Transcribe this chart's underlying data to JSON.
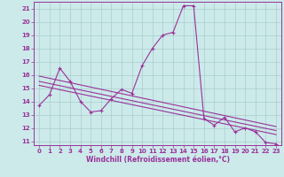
{
  "background_color": "#cceaea",
  "grid_color": "#aacccc",
  "line_color": "#993399",
  "xlim": [
    -0.5,
    23.5
  ],
  "ylim": [
    10.7,
    21.5
  ],
  "yticks": [
    11,
    12,
    13,
    14,
    15,
    16,
    17,
    18,
    19,
    20,
    21
  ],
  "xticks": [
    0,
    1,
    2,
    3,
    4,
    5,
    6,
    7,
    8,
    9,
    10,
    11,
    12,
    13,
    14,
    15,
    16,
    17,
    18,
    19,
    20,
    21,
    22,
    23
  ],
  "xlabel": "Windchill (Refroidissement éolien,°C)",
  "series1_x": [
    0,
    1,
    2,
    3,
    4,
    5,
    6,
    7,
    8,
    9,
    10,
    11,
    12,
    13,
    14,
    15,
    16,
    17,
    18,
    19,
    20,
    21,
    22,
    23
  ],
  "series1_y": [
    13.7,
    14.5,
    16.5,
    15.5,
    14.0,
    13.2,
    13.3,
    14.2,
    14.9,
    14.6,
    16.7,
    18.0,
    19.0,
    19.2,
    21.2,
    21.2,
    12.7,
    12.2,
    12.8,
    11.7,
    12.0,
    11.7,
    10.9,
    10.8
  ],
  "series2_x": [
    0,
    23
  ],
  "series2_y": [
    15.9,
    12.1
  ],
  "series3_x": [
    0,
    23
  ],
  "series3_y": [
    15.5,
    11.8
  ],
  "series4_x": [
    0,
    23
  ],
  "series4_y": [
    15.2,
    11.5
  ],
  "markersize": 3.5,
  "linewidth": 0.8
}
